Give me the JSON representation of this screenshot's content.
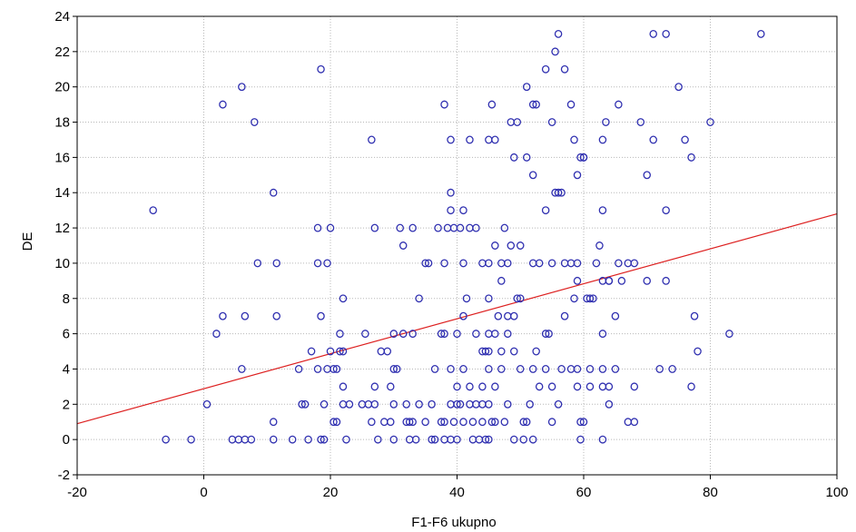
{
  "chart_data": {
    "type": "scatter",
    "xlabel": "F1-F6 ukupno",
    "ylabel": "DE",
    "xlim": [
      -20,
      100
    ],
    "ylim": [
      -2,
      24
    ],
    "xticks": [
      -20,
      0,
      20,
      40,
      60,
      80,
      100
    ],
    "yticks": [
      -2,
      0,
      2,
      4,
      6,
      8,
      10,
      12,
      14,
      16,
      18,
      20,
      22,
      24
    ],
    "grid": true,
    "legend": "none",
    "colors": {
      "points": "#2f2fb0",
      "fit_line": "#dd2020",
      "grid": "#b8b8b8",
      "axis": "#000000"
    },
    "fit_line": {
      "x": [
        -20,
        100
      ],
      "y": [
        0.9,
        12.8
      ]
    },
    "points": [
      [
        -8,
        13
      ],
      [
        -6,
        0
      ],
      [
        -2,
        0
      ],
      [
        0.5,
        2
      ],
      [
        2,
        6
      ],
      [
        3,
        7
      ],
      [
        3,
        19
      ],
      [
        4.5,
        0
      ],
      [
        5.5,
        0
      ],
      [
        6.5,
        0
      ],
      [
        6,
        4
      ],
      [
        6,
        20
      ],
      [
        6.5,
        7
      ],
      [
        7.5,
        0
      ],
      [
        8,
        18
      ],
      [
        8.5,
        10
      ],
      [
        11,
        0
      ],
      [
        11,
        1
      ],
      [
        11,
        14
      ],
      [
        11.5,
        10
      ],
      [
        11.5,
        7
      ],
      [
        14,
        0
      ],
      [
        15,
        4
      ],
      [
        15.5,
        2
      ],
      [
        16,
        2
      ],
      [
        16.5,
        0
      ],
      [
        17,
        5
      ],
      [
        18,
        4
      ],
      [
        18,
        10
      ],
      [
        18,
        12
      ],
      [
        18.5,
        0
      ],
      [
        18.5,
        21
      ],
      [
        18.5,
        7
      ],
      [
        19,
        2
      ],
      [
        19,
        0
      ],
      [
        19.5,
        4
      ],
      [
        19.5,
        10
      ],
      [
        20,
        5
      ],
      [
        20,
        12
      ],
      [
        20.5,
        4
      ],
      [
        20.5,
        1
      ],
      [
        21,
        4
      ],
      [
        21,
        1
      ],
      [
        21.5,
        6
      ],
      [
        21.5,
        5
      ],
      [
        22,
        8
      ],
      [
        22,
        3
      ],
      [
        22,
        5
      ],
      [
        22.5,
        0
      ],
      [
        22,
        2
      ],
      [
        23,
        2
      ],
      [
        25,
        2
      ],
      [
        25.5,
        6
      ],
      [
        26,
        2
      ],
      [
        26.5,
        17
      ],
      [
        26.5,
        1
      ],
      [
        27,
        3
      ],
      [
        27,
        12
      ],
      [
        27,
        2
      ],
      [
        27.5,
        0
      ],
      [
        28,
        5
      ],
      [
        28.5,
        1
      ],
      [
        29,
        5
      ],
      [
        29.5,
        1
      ],
      [
        29.5,
        3
      ],
      [
        30,
        2
      ],
      [
        30,
        0
      ],
      [
        30,
        6
      ],
      [
        30,
        4
      ],
      [
        30.5,
        4
      ],
      [
        31,
        12
      ],
      [
        31.5,
        11
      ],
      [
        31.5,
        6
      ],
      [
        32,
        2
      ],
      [
        32,
        1
      ],
      [
        32.5,
        0
      ],
      [
        32.5,
        1
      ],
      [
        33,
        1
      ],
      [
        33,
        12
      ],
      [
        33,
        6
      ],
      [
        33.5,
        0
      ],
      [
        34,
        8
      ],
      [
        34,
        2
      ],
      [
        35,
        10
      ],
      [
        35,
        1
      ],
      [
        35.5,
        10
      ],
      [
        36,
        0
      ],
      [
        36,
        2
      ],
      [
        36.5,
        4
      ],
      [
        36.5,
        0
      ],
      [
        37,
        12
      ],
      [
        37.5,
        6
      ],
      [
        37.5,
        1
      ],
      [
        38,
        0
      ],
      [
        38,
        1
      ],
      [
        38,
        19
      ],
      [
        38,
        10
      ],
      [
        38,
        6
      ],
      [
        38.5,
        12
      ],
      [
        39,
        2
      ],
      [
        39,
        17
      ],
      [
        39,
        14
      ],
      [
        39,
        13
      ],
      [
        39,
        0
      ],
      [
        39,
        4
      ],
      [
        39.5,
        1
      ],
      [
        39.5,
        12
      ],
      [
        40,
        3
      ],
      [
        40,
        6
      ],
      [
        40,
        2
      ],
      [
        40,
        0
      ],
      [
        40.5,
        2
      ],
      [
        40.5,
        12
      ],
      [
        41,
        1
      ],
      [
        41,
        10
      ],
      [
        41,
        13
      ],
      [
        41,
        4
      ],
      [
        41,
        7
      ],
      [
        41.5,
        8
      ],
      [
        42,
        12
      ],
      [
        42,
        17
      ],
      [
        42,
        3
      ],
      [
        42,
        2
      ],
      [
        42.5,
        0
      ],
      [
        42.5,
        1
      ],
      [
        43,
        12
      ],
      [
        43,
        6
      ],
      [
        43,
        2
      ],
      [
        43.5,
        0
      ],
      [
        44,
        10
      ],
      [
        44,
        5
      ],
      [
        44,
        3
      ],
      [
        44,
        1
      ],
      [
        44,
        2
      ],
      [
        44.5,
        0
      ],
      [
        44.5,
        5
      ],
      [
        45,
        10
      ],
      [
        45,
        6
      ],
      [
        45,
        4
      ],
      [
        45,
        5
      ],
      [
        45,
        0
      ],
      [
        45,
        2
      ],
      [
        45,
        17
      ],
      [
        45,
        8
      ],
      [
        45.5,
        19
      ],
      [
        45.5,
        1
      ],
      [
        46,
        1
      ],
      [
        46,
        17
      ],
      [
        46,
        6
      ],
      [
        46,
        3
      ],
      [
        46,
        11
      ],
      [
        46.5,
        7
      ],
      [
        47,
        10
      ],
      [
        47,
        9
      ],
      [
        47,
        5
      ],
      [
        47,
        4
      ],
      [
        47.5,
        1
      ],
      [
        47.5,
        12
      ],
      [
        48,
        10
      ],
      [
        48,
        7
      ],
      [
        48,
        2
      ],
      [
        48,
        6
      ],
      [
        48.5,
        18
      ],
      [
        48.5,
        11
      ],
      [
        49,
        16
      ],
      [
        49,
        5
      ],
      [
        49,
        7
      ],
      [
        49,
        0
      ],
      [
        49.5,
        8
      ],
      [
        49.5,
        18
      ],
      [
        50,
        8
      ],
      [
        50,
        11
      ],
      [
        50,
        4
      ],
      [
        50.5,
        0
      ],
      [
        50.5,
        1
      ],
      [
        51,
        20
      ],
      [
        51,
        16
      ],
      [
        51,
        1
      ],
      [
        51.5,
        2
      ],
      [
        52,
        0
      ],
      [
        52,
        15
      ],
      [
        52,
        19
      ],
      [
        52,
        4
      ],
      [
        52,
        10
      ],
      [
        52.5,
        19
      ],
      [
        52.5,
        5
      ],
      [
        53,
        3
      ],
      [
        53,
        10
      ],
      [
        54,
        21
      ],
      [
        54,
        13
      ],
      [
        54,
        6
      ],
      [
        54,
        4
      ],
      [
        54.5,
        6
      ],
      [
        55,
        1
      ],
      [
        55,
        3
      ],
      [
        55,
        10
      ],
      [
        55,
        18
      ],
      [
        55.5,
        14
      ],
      [
        55.5,
        22
      ],
      [
        56,
        23
      ],
      [
        56,
        2
      ],
      [
        56,
        14
      ],
      [
        56.5,
        4
      ],
      [
        56.5,
        14
      ],
      [
        57,
        10
      ],
      [
        57,
        7
      ],
      [
        57,
        21
      ],
      [
        58,
        4
      ],
      [
        58,
        19
      ],
      [
        58,
        10
      ],
      [
        58.5,
        8
      ],
      [
        58.5,
        17
      ],
      [
        59,
        15
      ],
      [
        59,
        4
      ],
      [
        59,
        3
      ],
      [
        59,
        10
      ],
      [
        59,
        9
      ],
      [
        59.5,
        1
      ],
      [
        59.5,
        0
      ],
      [
        59.5,
        16
      ],
      [
        60,
        16
      ],
      [
        60,
        1
      ],
      [
        60,
        16
      ],
      [
        60.5,
        8
      ],
      [
        61,
        3
      ],
      [
        61,
        8
      ],
      [
        61,
        4
      ],
      [
        61.5,
        8
      ],
      [
        62,
        10
      ],
      [
        62.5,
        11
      ],
      [
        63,
        0
      ],
      [
        63,
        3
      ],
      [
        63,
        6
      ],
      [
        63,
        4
      ],
      [
        63,
        9
      ],
      [
        63,
        13
      ],
      [
        63,
        17
      ],
      [
        63.5,
        18
      ],
      [
        64,
        9
      ],
      [
        64,
        9
      ],
      [
        64,
        3
      ],
      [
        64,
        2
      ],
      [
        65,
        4
      ],
      [
        65,
        7
      ],
      [
        65.5,
        19
      ],
      [
        65.5,
        10
      ],
      [
        66,
        9
      ],
      [
        67,
        1
      ],
      [
        67,
        10
      ],
      [
        68,
        3
      ],
      [
        68,
        1
      ],
      [
        68,
        10
      ],
      [
        69,
        18
      ],
      [
        70,
        9
      ],
      [
        70,
        15
      ],
      [
        71,
        23
      ],
      [
        71,
        17
      ],
      [
        72,
        4
      ],
      [
        73,
        13
      ],
      [
        73,
        23
      ],
      [
        73,
        9
      ],
      [
        74,
        4
      ],
      [
        75,
        20
      ],
      [
        76,
        17
      ],
      [
        77,
        3
      ],
      [
        77,
        16
      ],
      [
        77.5,
        7
      ],
      [
        78,
        5
      ],
      [
        80,
        18
      ],
      [
        83,
        6
      ],
      [
        88,
        23
      ]
    ]
  }
}
